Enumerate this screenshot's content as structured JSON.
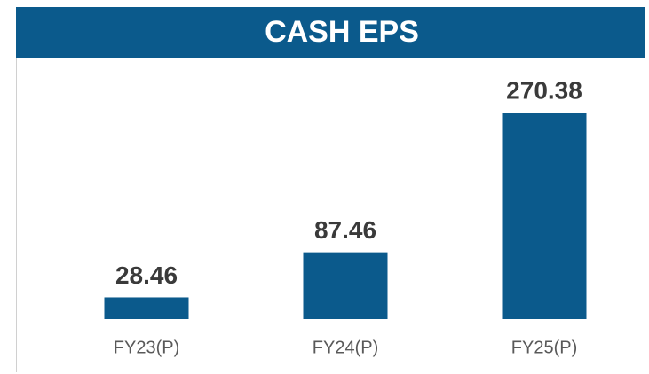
{
  "chart_data": {
    "type": "bar",
    "title": "CASH EPS",
    "categories": [
      "FY23(P)",
      "FY24(P)",
      "FY25(P)"
    ],
    "values": [
      28.46,
      87.46,
      270.38
    ],
    "color": "#0b5a8c"
  }
}
